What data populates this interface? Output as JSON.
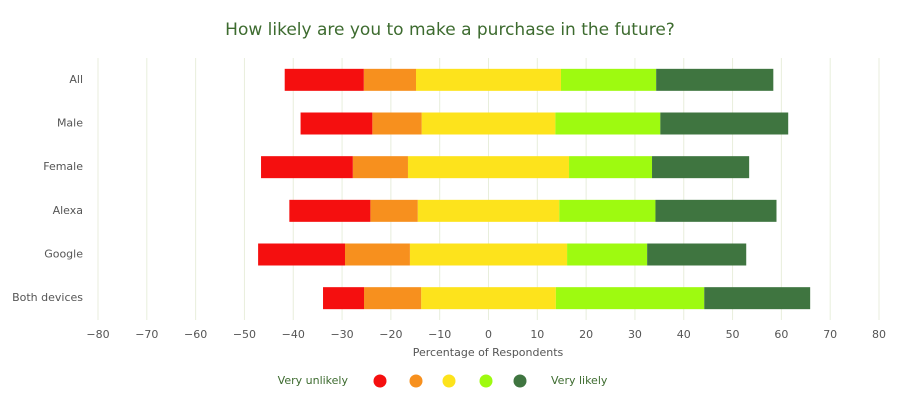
{
  "chart_data": {
    "type": "diverging-bar",
    "title": "How likely are you to make a purchase in the future?",
    "x_label": "Percentage of Respondents",
    "categories": [
      "All",
      "Male",
      "Female",
      "Alexa",
      "Google",
      "Both devices"
    ],
    "neutral_series": 2,
    "series": [
      {
        "name": "Very unlikely",
        "color": "#f50f0f",
        "values": [
          16.2,
          14.7,
          18.8,
          16.6,
          17.8,
          8.4
        ]
      },
      {
        "color": "#f7901e",
        "values": [
          10.7,
          10.1,
          11.3,
          9.7,
          13.3,
          11.7
        ]
      },
      {
        "color": "#fde31c",
        "values": [
          29.7,
          27.4,
          33.0,
          29.0,
          32.2,
          27.6
        ]
      },
      {
        "color": "#9efa10",
        "values": [
          19.5,
          21.5,
          17.0,
          19.7,
          16.4,
          30.4
        ]
      },
      {
        "name": "Very likely",
        "color": "#3f7540",
        "values": [
          24.0,
          26.2,
          19.9,
          24.8,
          20.3,
          21.7
        ]
      }
    ],
    "xlim": [
      -80,
      80
    ],
    "xticks": [
      {
        "value": -80,
        "label": "−80"
      },
      {
        "value": -70,
        "label": "−70"
      },
      {
        "value": -60,
        "label": "−60"
      },
      {
        "value": -50,
        "label": "−50"
      },
      {
        "value": -40,
        "label": "−40"
      },
      {
        "value": -30,
        "label": "−30"
      },
      {
        "value": -20,
        "label": "−20"
      },
      {
        "value": -10,
        "label": "−10"
      },
      0,
      10,
      20,
      30,
      40,
      50,
      60,
      70,
      80
    ],
    "grid": true
  }
}
